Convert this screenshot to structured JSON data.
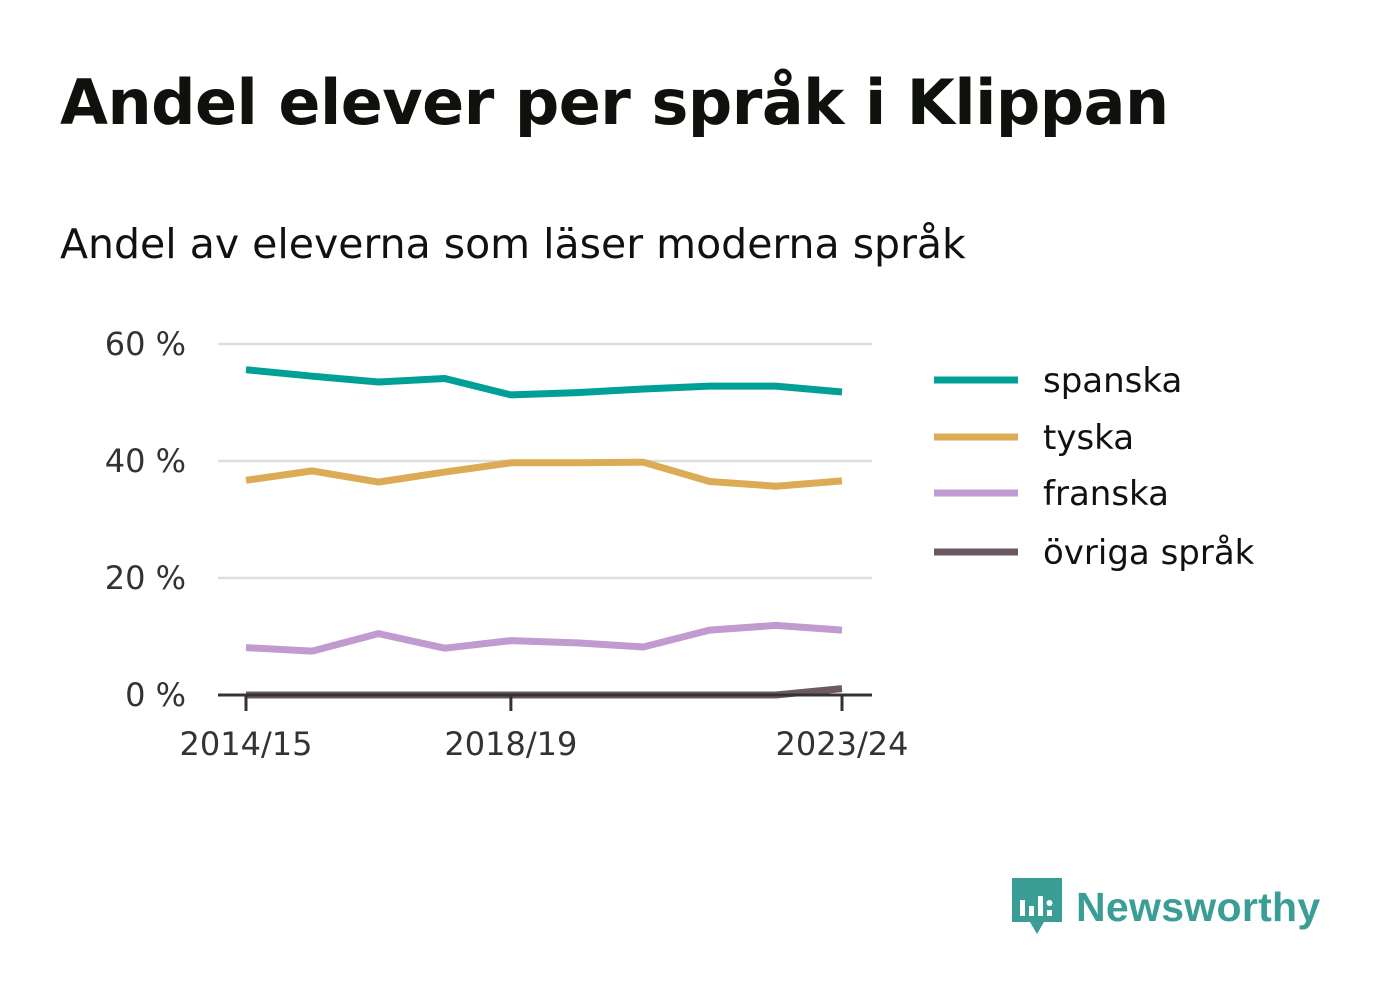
{
  "chart_data": {
    "type": "line",
    "title": "Andel elever per språk i Klippan",
    "subtitle": "Andel av eleverna som läser moderna språk",
    "x": [
      "2014/15",
      "2015/16",
      "2016/17",
      "2017/18",
      "2018/19",
      "2019/20",
      "2020/21",
      "2021/22",
      "2022/23",
      "2023/24"
    ],
    "x_tick_labels": [
      "2014/15",
      "2018/19",
      "2023/24"
    ],
    "ylim": [
      0,
      60
    ],
    "y_ticks": [
      0,
      20,
      40,
      60
    ],
    "y_tick_labels": [
      "0 %",
      "20 %",
      "40 %",
      "60 %"
    ],
    "grid": true,
    "legend_position": "right",
    "series": [
      {
        "name": "spanska",
        "color": "#00a096",
        "values": [
          55.6,
          54.5,
          53.5,
          54.1,
          51.3,
          51.7,
          52.3,
          52.8,
          52.8,
          51.8
        ]
      },
      {
        "name": "tyska",
        "color": "#dbab55",
        "values": [
          36.7,
          38.3,
          36.4,
          38.1,
          39.7,
          39.7,
          39.8,
          36.5,
          35.7,
          36.6
        ]
      },
      {
        "name": "franska",
        "color": "#c19acf",
        "values": [
          8.1,
          7.5,
          10.5,
          8.0,
          9.3,
          8.9,
          8.2,
          11.1,
          11.9,
          11.1
        ]
      },
      {
        "name": "övriga språk",
        "color": "#6b5964",
        "values": [
          0,
          0,
          0,
          0,
          0,
          0,
          0,
          0,
          0,
          1.1
        ]
      }
    ]
  },
  "logo": {
    "text": "Newsworthy",
    "color": "#3a9d96"
  }
}
